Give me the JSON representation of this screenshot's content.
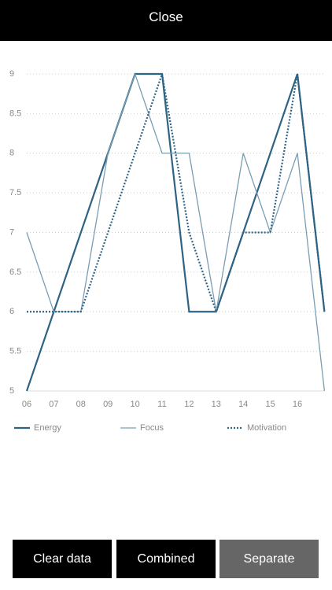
{
  "top_bar": {
    "title": "Close"
  },
  "chart_data": {
    "type": "line",
    "categories": [
      "06",
      "07",
      "08",
      "09",
      "10",
      "11",
      "12",
      "13",
      "14",
      "15",
      "16",
      null
    ],
    "series": [
      {
        "name": "Energy",
        "color": "#2f6384",
        "style": "solid",
        "width": 2.2,
        "values": [
          5,
          6,
          7,
          8,
          9,
          9,
          6,
          6,
          7,
          8,
          9,
          6
        ]
      },
      {
        "name": "Focus",
        "color": "#7b9db2",
        "style": "solid",
        "width": 1.3,
        "values": [
          7,
          6,
          6,
          8,
          9,
          8,
          8,
          6,
          8,
          7,
          8,
          5
        ]
      },
      {
        "name": "Motivation",
        "color": "#2f6384",
        "style": "dotted",
        "width": 2.2,
        "values": [
          6,
          6,
          6,
          7,
          8,
          9,
          7,
          6,
          7,
          7,
          9,
          6
        ]
      }
    ],
    "ylim": [
      5,
      9
    ],
    "yticks": [
      5,
      5.5,
      6,
      6.5,
      7,
      7.5,
      8,
      8.5,
      9
    ],
    "grid": true
  },
  "buttons": [
    "Clear data",
    "Combined",
    "Separate"
  ]
}
